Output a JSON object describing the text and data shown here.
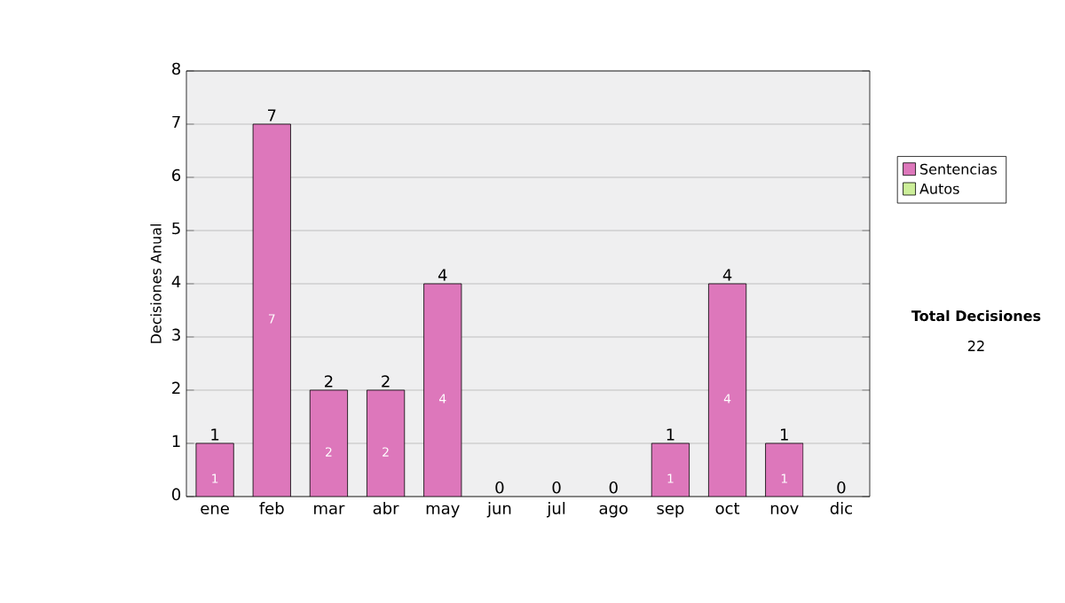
{
  "chart_data": {
    "type": "bar",
    "stacked": true,
    "ylabel": "Decisiones Anual",
    "categories": [
      "ene",
      "feb",
      "mar",
      "abr",
      "may",
      "jun",
      "jul",
      "ago",
      "sep",
      "oct",
      "nov",
      "dic"
    ],
    "series": [
      {
        "name": "Sentencias",
        "color": "#dd77bb",
        "values": [
          1,
          7,
          2,
          2,
          4,
          0,
          0,
          0,
          1,
          4,
          1,
          0
        ],
        "value_labels": [
          "1",
          "7",
          "2",
          "2",
          "4",
          null,
          null,
          null,
          "1",
          "4",
          "1",
          null
        ]
      },
      {
        "name": "Autos",
        "color": "#ccee99",
        "values": [
          0,
          0,
          0,
          0,
          0,
          0,
          0,
          0,
          0,
          0,
          0,
          0
        ]
      }
    ],
    "totals": [
      "1",
      "7",
      "2",
      "2",
      "4",
      "0",
      "0",
      "0",
      "1",
      "4",
      "1",
      "0"
    ],
    "ylim": [
      0,
      8
    ],
    "yticks": [
      0,
      1,
      2,
      3,
      4,
      5,
      6,
      7,
      8
    ],
    "grid": "y",
    "legend": "right",
    "annotations": [
      "Total Decisiones",
      "22"
    ]
  }
}
